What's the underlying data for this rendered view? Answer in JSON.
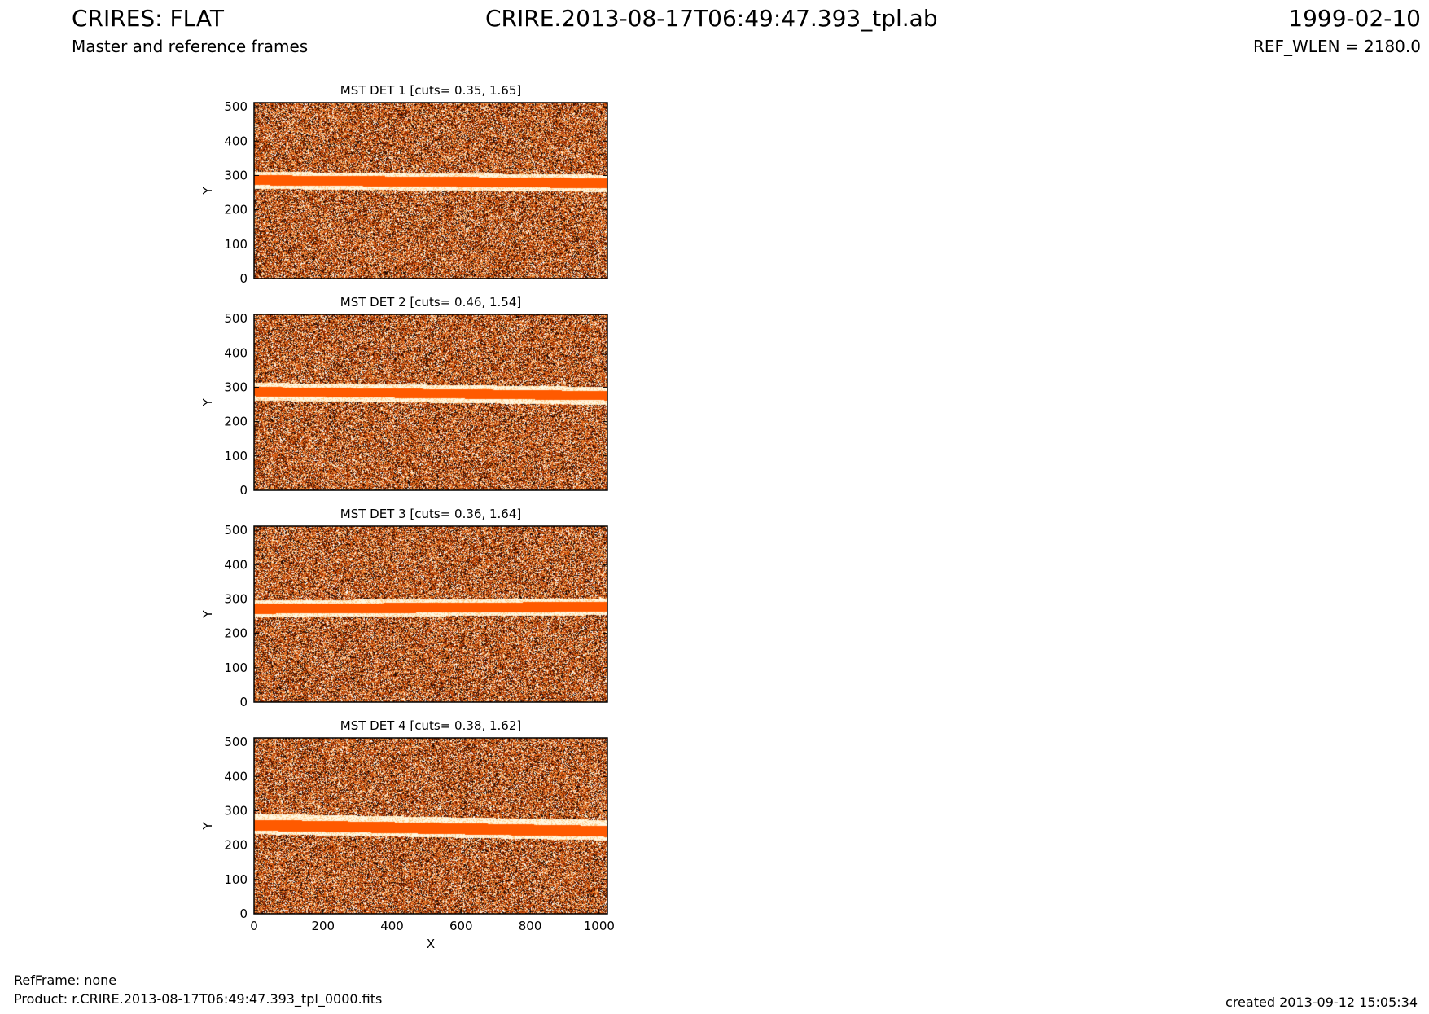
{
  "header": {
    "title": "CRIRES: FLAT",
    "file": "CRIRE.2013-08-17T06:49:47.393_tpl.ab",
    "date": "1999-02-10",
    "subtitle": "Master and reference frames",
    "ref_wlen": "REF_WLEN = 2180.0"
  },
  "footer": {
    "refframe": "RefFrame: none",
    "product": "Product: r.CRIRE.2013-08-17T06:49:47.393_tpl_0000.fits",
    "created": "created 2013-09-12 15:05:34"
  },
  "colors": {
    "band": "#ff5a00",
    "dark": "#1a0500",
    "mid": "#b83a00",
    "light": "#f0a050",
    "pale": "#ffe9c0"
  },
  "chart_data": [
    {
      "type": "heatmap",
      "title": "MST DET 1 [cuts= 0.35, 1.65]",
      "xlabel": "",
      "ylabel": "Y",
      "xlim": [
        0,
        1024
      ],
      "ylim": [
        0,
        512
      ],
      "xticks": [],
      "yticks": [
        "0",
        "100",
        "200",
        "300",
        "400",
        "500"
      ],
      "band": {
        "y_low": 273,
        "y_high": 302,
        "halo_low": 262,
        "halo_high": 312,
        "tilt": -3
      }
    },
    {
      "type": "heatmap",
      "title": "MST DET 2 [cuts= 0.46, 1.54]",
      "xlabel": "",
      "ylabel": "Y",
      "xlim": [
        0,
        1024
      ],
      "ylim": [
        0,
        512
      ],
      "xticks": [],
      "yticks": [
        "0",
        "100",
        "200",
        "300",
        "400",
        "500"
      ],
      "band": {
        "y_low": 275,
        "y_high": 302,
        "halo_low": 262,
        "halo_high": 314,
        "tilt": -4
      }
    },
    {
      "type": "heatmap",
      "title": "MST DET 3 [cuts= 0.36, 1.64]",
      "xlabel": "",
      "ylabel": "Y",
      "xlim": [
        0,
        1024
      ],
      "ylim": [
        0,
        512
      ],
      "xticks": [],
      "yticks": [
        "0",
        "100",
        "200",
        "300",
        "400",
        "500"
      ],
      "band": {
        "y_low": 258,
        "y_high": 287,
        "halo_low": 248,
        "halo_high": 297,
        "tilt": 2
      }
    },
    {
      "type": "heatmap",
      "title": "MST DET 4 [cuts= 0.38, 1.62]",
      "xlabel": "X",
      "ylabel": "Y",
      "xlim": [
        0,
        1024
      ],
      "ylim": [
        0,
        512
      ],
      "xticks": [
        "0",
        "200",
        "400",
        "600",
        "800",
        "1000"
      ],
      "yticks": [
        "0",
        "100",
        "200",
        "300",
        "400",
        "500"
      ],
      "band": {
        "y_low": 243,
        "y_high": 275,
        "halo_low": 233,
        "halo_high": 292,
        "tilt": -6
      }
    }
  ]
}
